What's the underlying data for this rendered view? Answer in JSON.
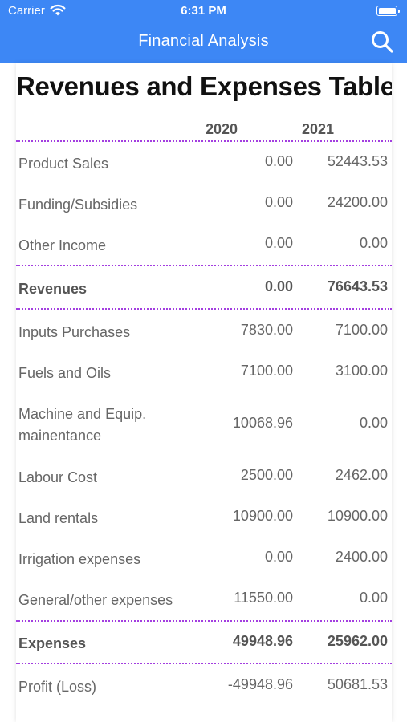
{
  "status_bar": {
    "carrier": "Carrier",
    "time": "6:31 PM"
  },
  "nav": {
    "title": "Financial Analysis",
    "search_icon": "search-icon"
  },
  "colors": {
    "accent": "#3d87f5",
    "separator": "#a33ee0"
  },
  "table": {
    "title": "Revenues and Expenses Table",
    "columns": [
      "2020",
      "2021"
    ],
    "rows": [
      {
        "label": "Product Sales",
        "v2020": "0.00",
        "v2021": "52443.53"
      },
      {
        "label": "Funding/Subsidies",
        "v2020": "0.00",
        "v2021": "24200.00"
      },
      {
        "label": "Other Income",
        "v2020": "0.00",
        "v2021": "0.00"
      },
      {
        "label": "Revenues",
        "v2020": "0.00",
        "v2021": "76643.53"
      },
      {
        "label": "Inputs Purchases",
        "v2020": "7830.00",
        "v2021": "7100.00"
      },
      {
        "label": "Fuels and Oils",
        "v2020": "7100.00",
        "v2021": "3100.00"
      },
      {
        "label": "Machine and Equip. mainentance",
        "v2020": "10068.96",
        "v2021": "0.00"
      },
      {
        "label": "Labour Cost",
        "v2020": "2500.00",
        "v2021": "2462.00"
      },
      {
        "label": "Land rentals",
        "v2020": "10900.00",
        "v2021": "10900.00"
      },
      {
        "label": "Irrigation expenses",
        "v2020": "0.00",
        "v2021": "2400.00"
      },
      {
        "label": "General/other expenses",
        "v2020": "11550.00",
        "v2021": "0.00"
      },
      {
        "label": "Expenses",
        "v2020": "49948.96",
        "v2021": "25962.00"
      },
      {
        "label": "Profit (Loss)",
        "v2020": "-49948.96",
        "v2021": "50681.53"
      }
    ]
  }
}
